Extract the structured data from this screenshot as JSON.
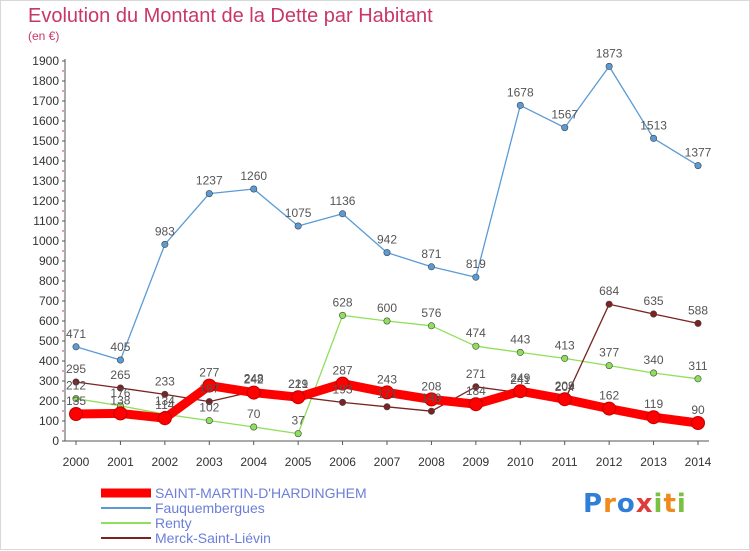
{
  "header": {
    "title": "Evolution du Montant de la Dette par Habitant",
    "unit": "(en €)"
  },
  "logo": {
    "text": "Proxiti",
    "letter_colors": [
      "#2f7fd8",
      "#f08a1c",
      "#2f7fd8",
      "#e03a3a",
      "#7ac143",
      "#f08a1c",
      "#7ac143"
    ]
  },
  "chart_data": {
    "type": "line",
    "x": [
      2000,
      2001,
      2002,
      2003,
      2004,
      2005,
      2006,
      2007,
      2008,
      2009,
      2010,
      2011,
      2012,
      2013,
      2014
    ],
    "ylim": [
      0,
      1900
    ],
    "yticks": [
      0,
      100,
      200,
      300,
      400,
      500,
      600,
      700,
      800,
      900,
      1000,
      1100,
      1200,
      1300,
      1400,
      1500,
      1600,
      1700,
      1800,
      1900
    ],
    "grid": false,
    "legend_position": "bottom-left",
    "series": [
      {
        "name": "SAINT-MARTIN-D'HARDINGHEM",
        "color": "#ff0000",
        "emphasis": true,
        "values": [
          135,
          138,
          114,
          277,
          242,
          219,
          287,
          243,
          208,
          184,
          249,
          209,
          162,
          119,
          90
        ]
      },
      {
        "name": "Fauquembergues",
        "color": "#5b9bd5",
        "values": [
          471,
          405,
          983,
          1237,
          1260,
          1075,
          1136,
          942,
          871,
          819,
          1678,
          1567,
          1873,
          1513,
          1377
        ]
      },
      {
        "name": "Renty",
        "color": "#8ee05a",
        "values": [
          212,
          176,
          134,
          102,
          70,
          37,
          628,
          600,
          576,
          474,
          443,
          413,
          377,
          340,
          311
        ]
      },
      {
        "name": "Merck-Saint-Liévin",
        "color": "#7a2323",
        "values": [
          295,
          265,
          233,
          197,
          248,
          221,
          193,
          171,
          149,
          271,
          241,
          204,
          684,
          635,
          588
        ]
      }
    ]
  }
}
